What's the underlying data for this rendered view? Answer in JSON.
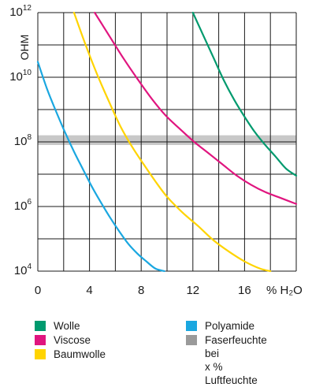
{
  "chart_data": {
    "type": "line",
    "title": "",
    "ylabel": "OHM",
    "xlabel": "% H₂O",
    "y_scale": "log",
    "grid": true,
    "xlim": [
      0,
      20
    ],
    "ylim": [
      10000,
      1000000000000
    ],
    "x_ticks": [
      0,
      4,
      8,
      12,
      16
    ],
    "x_tick_labels": [
      "0",
      "4",
      "8",
      "12",
      "16"
    ],
    "y_ticks": [
      {
        "value": 10000,
        "base": "10",
        "exp": "4"
      },
      {
        "value": 1000000,
        "base": "10",
        "exp": "6"
      },
      {
        "value": 100000000,
        "base": "10",
        "exp": "8"
      },
      {
        "value": 10000000000,
        "base": "10",
        "exp": "10"
      },
      {
        "value": 1000000000000,
        "base": "10",
        "exp": "12"
      }
    ],
    "band": {
      "y_range": [
        80000000,
        160000000
      ],
      "color": "#c8c8c8",
      "name": "Faserfeuchte bei\nx % Luftfeuchte"
    },
    "series": [
      {
        "name": "Wolle",
        "color": "#009a6e",
        "x": [
          12.0,
          12.8,
          13.6,
          14.4,
          15.2,
          16.0,
          16.8,
          17.6,
          18.4,
          19.2,
          20.0
        ],
        "y": [
          1000000000000,
          200000000000,
          40000000000,
          8000000000,
          2000000000,
          600000000,
          200000000,
          80000000,
          35000000,
          15000000,
          9000000
        ]
      },
      {
        "name": "Viscose",
        "color": "#e0157f",
        "x": [
          4.4,
          5.5,
          6.6,
          7.7,
          8.8,
          9.9,
          11.0,
          12.1,
          13.2,
          14.3,
          15.4,
          16.5,
          17.6,
          18.7,
          20.0
        ],
        "y": [
          1000000000000,
          200000000000,
          40000000000,
          9000000000,
          2200000000,
          650000000,
          250000000,
          100000000,
          45000000,
          20000000,
          9000000,
          4700000,
          2800000,
          1900000,
          1200000
        ]
      },
      {
        "name": "Baumwolle",
        "color": "#ffd400",
        "x": [
          2.8,
          3.7,
          4.6,
          5.5,
          6.4,
          7.3,
          8.2,
          9.1,
          10.0,
          11.2,
          12.4,
          13.6,
          14.8,
          16.0,
          17.2,
          18.0
        ],
        "y": [
          1000000000000,
          100000000000,
          12000000000,
          1800000000,
          300000000,
          70000000,
          20000000,
          6000000,
          2000000,
          650000,
          250000,
          90000,
          40000,
          20000,
          12000,
          10000
        ]
      },
      {
        "name": "Polyamide",
        "color": "#1aa7e0",
        "x": [
          0.0,
          0.7,
          1.4,
          2.1,
          2.8,
          3.5,
          4.2,
          4.9,
          5.6,
          6.3,
          7.0,
          7.7,
          8.4,
          9.1,
          9.8
        ],
        "y": [
          30000000000,
          4500000000,
          900000000,
          200000000,
          50000000,
          14000000,
          4000000,
          1300000,
          450000,
          170000,
          70000,
          35000,
          20000,
          12000,
          10000
        ]
      }
    ]
  },
  "legend": {
    "items": [
      {
        "label": "Wolle",
        "color": "#009a6e"
      },
      {
        "label": "Viscose",
        "color": "#e0157f"
      },
      {
        "label": "Baumwolle",
        "color": "#ffd400"
      },
      {
        "label": "Polyamide",
        "color": "#1aa7e0"
      },
      {
        "label": "Faserfeuchte bei\nx % Luftfeuchte",
        "color": "#9a9a9a"
      }
    ]
  }
}
